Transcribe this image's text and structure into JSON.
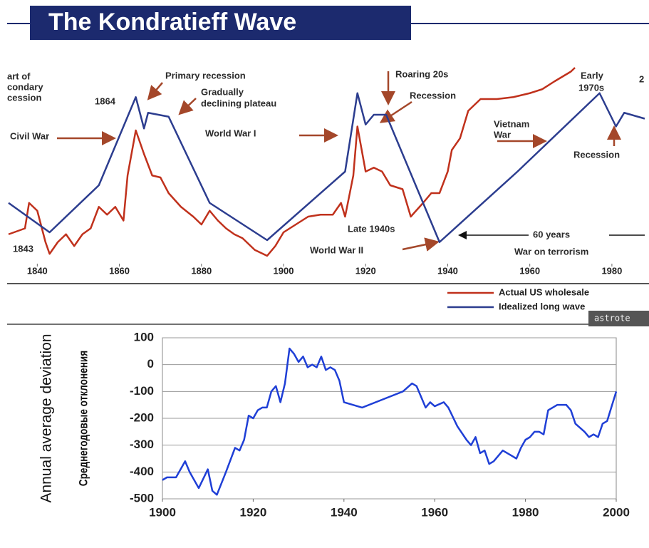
{
  "title": "The Kondratieff Wave",
  "watermark": "astrote",
  "chart_data": [
    {
      "type": "line",
      "annotations": [
        "art of",
        "condary",
        "cession",
        "1864",
        "Primary recession",
        "Gradually",
        "declining plateau",
        "Civil War",
        "World War I",
        "Roaring 20s",
        "Recession",
        "Vietnam",
        "War",
        "Early",
        "1970s",
        "Recession",
        "Late 1940s",
        "60 years",
        "World War II",
        "War on terrorism",
        "1843",
        "2"
      ],
      "xlim": [
        1833,
        1988
      ],
      "xticks": [
        1840,
        1860,
        1880,
        1900,
        1920,
        1940,
        1960,
        1980
      ],
      "ylim": [
        0,
        100
      ],
      "series": [
        {
          "name": "Actual US wholesale",
          "color": "#c0311c",
          "x": [
            1833,
            1837,
            1838,
            1840,
            1842,
            1843,
            1845,
            1847,
            1849,
            1851,
            1853,
            1855,
            1857,
            1859,
            1861,
            1862,
            1864,
            1866,
            1868,
            1870,
            1872,
            1875,
            1878,
            1880,
            1882,
            1884,
            1886,
            1888,
            1890,
            1893,
            1896,
            1898,
            1900,
            1903,
            1906,
            1909,
            1912,
            1914,
            1915,
            1917,
            1918,
            1920,
            1922,
            1924,
            1926,
            1929,
            1931,
            1934,
            1936,
            1938,
            1940,
            1941,
            1943,
            1945,
            1948,
            1952,
            1956,
            1960,
            1963,
            1966,
            1970,
            1971
          ],
          "values": [
            15,
            18,
            31,
            27,
            11,
            5,
            11,
            15,
            9,
            15,
            18,
            29,
            25,
            29,
            22,
            45,
            68,
            56,
            45,
            44,
            36,
            29,
            24,
            20,
            27,
            22,
            18,
            15,
            13,
            7,
            4,
            9,
            16,
            20,
            24,
            25,
            25,
            31,
            24,
            45,
            70,
            47,
            49,
            47,
            40,
            38,
            24,
            31,
            36,
            36,
            47,
            58,
            64,
            78,
            84,
            84,
            85,
            87,
            89,
            93,
            98,
            100
          ]
        },
        {
          "name": "Idealized long wave",
          "color": "#2c3d8f",
          "x": [
            1833,
            1843,
            1855,
            1864,
            1866,
            1867,
            1872,
            1882,
            1896,
            1915,
            1918,
            1920,
            1922,
            1925,
            1938,
            1957,
            1977,
            1981,
            1983,
            1988
          ],
          "values": [
            31,
            16,
            40,
            85,
            69,
            77,
            75,
            31,
            12,
            47,
            87,
            71,
            76,
            76,
            11,
            47,
            87,
            70,
            77,
            74
          ]
        }
      ]
    },
    {
      "type": "line",
      "ylabel": "Annual average deviation",
      "ylabel2": "Среднегодовые отклонения",
      "xlim": [
        1900,
        2000
      ],
      "xticks": [
        1900,
        1920,
        1940,
        1960,
        1980,
        2000
      ],
      "ylim": [
        -500,
        100
      ],
      "yticks": [
        -500,
        -400,
        -300,
        -200,
        -100,
        0,
        100
      ],
      "grid": true,
      "series": [
        {
          "color": "#1f3fd6",
          "x": [
            1900,
            1901,
            1903,
            1905,
            1906,
            1908,
            1910,
            1911,
            1912,
            1914,
            1916,
            1917,
            1918,
            1919,
            1920,
            1921,
            1922,
            1923,
            1924,
            1925,
            1926,
            1927,
            1928,
            1929,
            1930,
            1931,
            1932,
            1933,
            1934,
            1935,
            1936,
            1937,
            1938,
            1939,
            1940,
            1942,
            1944,
            1950,
            1953,
            1955,
            1956,
            1957,
            1958,
            1959,
            1960,
            1962,
            1963,
            1965,
            1967,
            1968,
            1969,
            1970,
            1971,
            1972,
            1973,
            1975,
            1976,
            1977,
            1978,
            1979,
            1980,
            1981,
            1982,
            1983,
            1984,
            1985,
            1987,
            1989,
            1990,
            1991,
            1993,
            1994,
            1995,
            1996,
            1997,
            1998,
            2000
          ],
          "values": [
            -430,
            -420,
            -420,
            -360,
            -400,
            -460,
            -390,
            -470,
            -485,
            -400,
            -310,
            -320,
            -280,
            -190,
            -200,
            -170,
            -160,
            -160,
            -100,
            -80,
            -140,
            -70,
            60,
            40,
            10,
            30,
            -10,
            0,
            -10,
            30,
            -20,
            -10,
            -20,
            -60,
            -140,
            -150,
            -160,
            -120,
            -100,
            -70,
            -80,
            -120,
            -160,
            -140,
            -155,
            -140,
            -160,
            -230,
            -280,
            -300,
            -270,
            -330,
            -320,
            -370,
            -360,
            -320,
            -330,
            -340,
            -350,
            -310,
            -280,
            -270,
            -250,
            -250,
            -260,
            -170,
            -150,
            -150,
            -170,
            -220,
            -250,
            -270,
            -260,
            -270,
            -220,
            -210,
            -100
          ]
        }
      ]
    }
  ]
}
